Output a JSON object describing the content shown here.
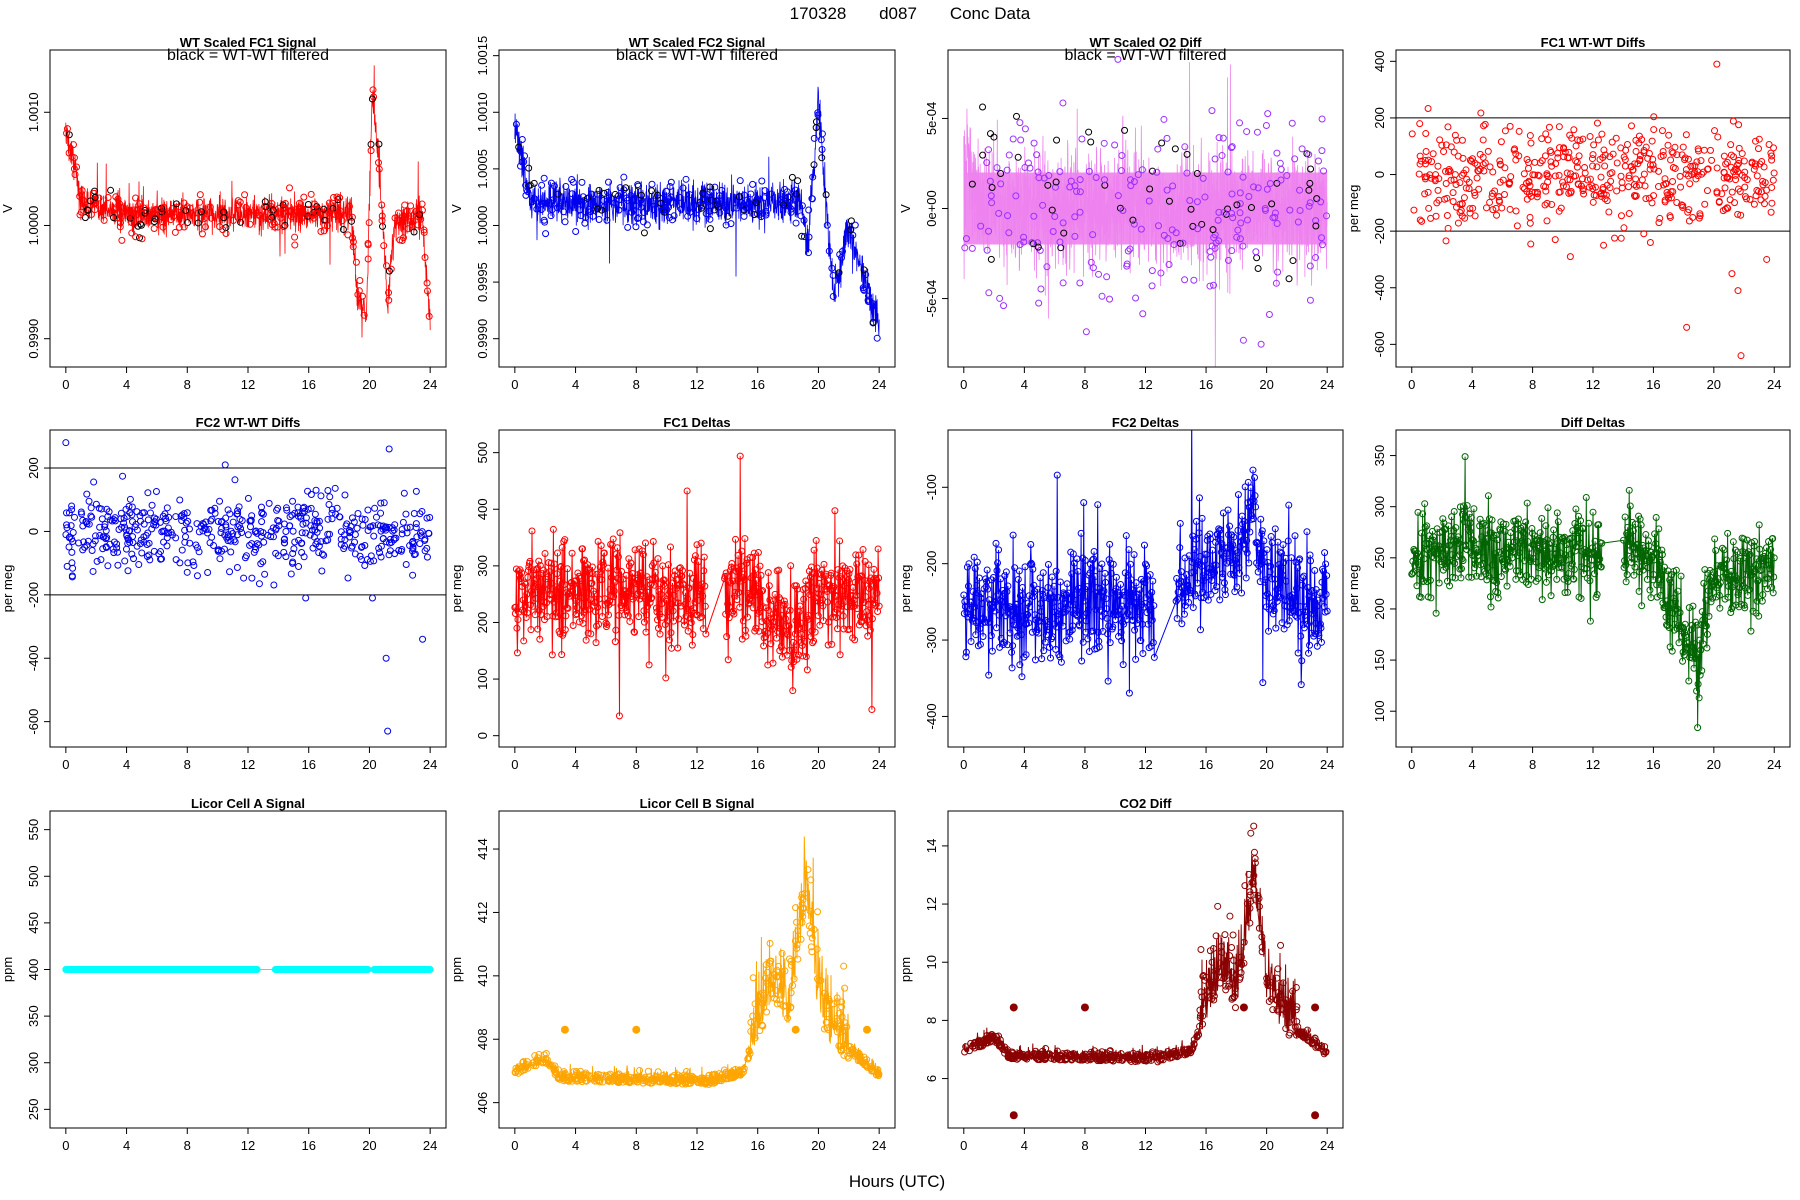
{
  "figure": {
    "title_parts": [
      "170328",
      "d087",
      "Conc Data"
    ],
    "xlabel": "Hours (UTC)",
    "x_ticks": [
      "0",
      "4",
      "8",
      "12",
      "16",
      "20",
      "24"
    ],
    "filter_note": "black = WT-WT filtered"
  },
  "chart_data": [
    {
      "id": "fc1_signal",
      "type": "line",
      "title": "WT Scaled FC1 Signal",
      "ylabel": "V",
      "color": "#ff0000",
      "style": "dense-line",
      "note": true,
      "xlim": [
        0,
        24
      ],
      "ylim": [
        0.99875,
        1.00155
      ],
      "ytick_labels": [
        "0.9990",
        "1.0000",
        "1.0010"
      ],
      "yticks": [
        0.999,
        1.0,
        1.001
      ],
      "xticks": [
        0,
        4,
        8,
        12,
        16,
        20,
        24
      ],
      "profile": [
        [
          0,
          1.0008
        ],
        [
          0.5,
          1.0006
        ],
        [
          1,
          1.0002
        ],
        [
          4,
          1.0001
        ],
        [
          8,
          1.0001
        ],
        [
          12,
          1.0001
        ],
        [
          16,
          1.0001
        ],
        [
          18.8,
          1.0001
        ],
        [
          19.2,
          0.9994
        ],
        [
          19.8,
          0.9992
        ],
        [
          20.2,
          1.0012
        ],
        [
          20.6,
          1.0006
        ],
        [
          21.2,
          0.9993
        ],
        [
          21.6,
          1.0
        ],
        [
          23.5,
          1.0001
        ],
        [
          24,
          0.9991
        ]
      ],
      "noise": 0.00022
    },
    {
      "id": "fc2_signal",
      "type": "line",
      "title": "WT Scaled FC2 Signal",
      "ylabel": "V",
      "color": "#0000ee",
      "style": "dense-line",
      "note": true,
      "xlim": [
        0,
        24
      ],
      "ylim": [
        0.99875,
        1.00155
      ],
      "ytick_labels": [
        "0.9990",
        "0.9995",
        "1.0000",
        "1.0005",
        "1.0010",
        "1.0015"
      ],
      "yticks": [
        0.999,
        0.9995,
        1.0,
        1.0005,
        1.001,
        1.0015
      ],
      "xticks": [
        0,
        4,
        8,
        12,
        16,
        20,
        24
      ],
      "profile": [
        [
          0,
          1.0009
        ],
        [
          1,
          1.0002
        ],
        [
          4,
          1.0002
        ],
        [
          8,
          1.0002
        ],
        [
          12,
          1.0002
        ],
        [
          16,
          1.0002
        ],
        [
          18.8,
          1.0002
        ],
        [
          19.3,
          0.9998
        ],
        [
          20,
          1.0011
        ],
        [
          20.5,
          1.0002
        ],
        [
          21,
          0.9994
        ],
        [
          22,
          1.0
        ],
        [
          24,
          0.9991
        ]
      ],
      "noise": 0.00025
    },
    {
      "id": "o2_diff",
      "type": "line",
      "title": "WT Scaled O2 Diff",
      "ylabel": "V",
      "color": "#ee82ee",
      "style": "band",
      "note": true,
      "xlim": [
        0,
        24
      ],
      "ylim": [
        -0.00088,
        0.00088
      ],
      "ytick_labels": [
        "-5e-04",
        "0e+00",
        "5e-04"
      ],
      "yticks": [
        -0.0005,
        0,
        0.0005
      ],
      "xticks": [
        0,
        4,
        8,
        12,
        16,
        20,
        24
      ],
      "profile": [
        [
          0,
          0.0003
        ],
        [
          1,
          0
        ],
        [
          24,
          0
        ]
      ],
      "noise": 0.00045
    },
    {
      "id": "fc1_wtwt",
      "type": "scatter",
      "title": "FC1 WT-WT Diffs",
      "ylabel": "per meg",
      "color": "#ff0000",
      "hlines": [
        200,
        -200
      ],
      "xlim": [
        0,
        24
      ],
      "ylim": [
        -680,
        440
      ],
      "ytick_labels": [
        "-600",
        "-400",
        "-200",
        "0",
        "200",
        "400"
      ],
      "yticks": [
        -600,
        -400,
        -200,
        0,
        200,
        400
      ],
      "xticks": [
        0,
        4,
        8,
        12,
        16,
        20,
        24
      ],
      "n": 520,
      "center": 0,
      "spread": 90,
      "outliers": [
        [
          9.5,
          -230
        ],
        [
          10.5,
          -290
        ],
        [
          12.7,
          -250
        ],
        [
          15.8,
          -240
        ],
        [
          18.2,
          -540
        ],
        [
          20.2,
          390
        ],
        [
          21.2,
          -350
        ],
        [
          21.6,
          -410
        ],
        [
          21.8,
          -640
        ],
        [
          23.5,
          -300
        ]
      ]
    },
    {
      "id": "fc2_wtwt",
      "type": "scatter",
      "title": "FC2 WT-WT Diffs",
      "ylabel": "per meg",
      "color": "#0000ee",
      "hlines": [
        200,
        -200
      ],
      "xlim": [
        0,
        24
      ],
      "ylim": [
        -680,
        320
      ],
      "ytick_labels": [
        "-600",
        "-400",
        "-200",
        "0",
        "200"
      ],
      "yticks": [
        -600,
        -400,
        -200,
        0,
        200
      ],
      "xticks": [
        0,
        4,
        8,
        12,
        16,
        20,
        24
      ],
      "n": 520,
      "center": 0,
      "spread": 60,
      "outliers": [
        [
          0,
          280
        ],
        [
          10.5,
          210
        ],
        [
          15.8,
          -210
        ],
        [
          20.2,
          -210
        ],
        [
          21.1,
          -400
        ],
        [
          21.2,
          -630
        ],
        [
          21.3,
          260
        ],
        [
          23.5,
          -340
        ]
      ]
    },
    {
      "id": "fc1_deltas",
      "type": "line",
      "title": "FC1 Deltas",
      "ylabel": "per meg",
      "color": "#ff0000",
      "style": "marked-line",
      "xlim": [
        0,
        24
      ],
      "ylim": [
        -20,
        540
      ],
      "ytick_labels": [
        "0",
        "100",
        "200",
        "300",
        "400",
        "500"
      ],
      "yticks": [
        0,
        100,
        200,
        300,
        400,
        500
      ],
      "xticks": [
        0,
        4,
        8,
        12,
        16,
        20,
        24
      ],
      "gaps": [
        [
          12.6,
          13.8
        ]
      ],
      "profile": [
        [
          0,
          250
        ],
        [
          4,
          255
        ],
        [
          8,
          250
        ],
        [
          12.5,
          250
        ],
        [
          14,
          260
        ],
        [
          16,
          255
        ],
        [
          17,
          210
        ],
        [
          19,
          190
        ],
        [
          20,
          240
        ],
        [
          24,
          250
        ]
      ],
      "noise": 45
    },
    {
      "id": "fc2_deltas",
      "type": "line",
      "title": "FC2 Deltas",
      "ylabel": "per meg",
      "color": "#0000ee",
      "style": "marked-line",
      "xlim": [
        0,
        24
      ],
      "ylim": [
        -440,
        -25
      ],
      "ytick_labels": [
        "-400",
        "-300",
        "-200",
        "-100"
      ],
      "yticks": [
        -400,
        -300,
        -200,
        -100
      ],
      "xticks": [
        0,
        4,
        8,
        12,
        16,
        20,
        24
      ],
      "gaps": [
        [
          12.6,
          14
        ]
      ],
      "profile": [
        [
          0,
          -255
        ],
        [
          4,
          -255
        ],
        [
          8,
          -255
        ],
        [
          12.5,
          -260
        ],
        [
          14,
          -240
        ],
        [
          16,
          -200
        ],
        [
          18.5,
          -170
        ],
        [
          19.3,
          -120
        ],
        [
          20,
          -230
        ],
        [
          24,
          -260
        ]
      ],
      "noise": 35
    },
    {
      "id": "diff_deltas",
      "type": "line",
      "title": "Diff Deltas",
      "ylabel": "per meg",
      "color": "#006400",
      "style": "marked-line",
      "xlim": [
        0,
        24
      ],
      "ylim": [
        65,
        375
      ],
      "ytick_labels": [
        "100",
        "150",
        "200",
        "250",
        "300",
        "350"
      ],
      "yticks": [
        100,
        150,
        200,
        250,
        300,
        350
      ],
      "xticks": [
        0,
        4,
        8,
        12,
        16,
        20,
        24
      ],
      "gaps": [
        [
          12.6,
          14
        ]
      ],
      "profile": [
        [
          0,
          245
        ],
        [
          3,
          265
        ],
        [
          4,
          260
        ],
        [
          8,
          255
        ],
        [
          12.5,
          255
        ],
        [
          14,
          255
        ],
        [
          16,
          250
        ],
        [
          17,
          215
        ],
        [
          19,
          150
        ],
        [
          20,
          230
        ],
        [
          24,
          245
        ]
      ],
      "noise": 22
    },
    {
      "id": "licor_a",
      "type": "line",
      "title": "Licor Cell A Signal",
      "ylabel": "ppm",
      "color": "#00ffff",
      "style": "flat",
      "xlim": [
        0,
        24
      ],
      "ylim": [
        230,
        570
      ],
      "ytick_labels": [
        "250",
        "300",
        "350",
        "400",
        "450",
        "500",
        "550"
      ],
      "yticks": [
        250,
        300,
        350,
        400,
        450,
        500,
        550
      ],
      "xticks": [
        0,
        4,
        8,
        12,
        16,
        20,
        24
      ],
      "value": 400,
      "gaps": [
        [
          12.6,
          13.8
        ],
        [
          19.9,
          20.3
        ]
      ]
    },
    {
      "id": "licor_b",
      "type": "line",
      "title": "Licor Cell B Signal",
      "ylabel": "ppm",
      "color": "#ffa500",
      "style": "co2",
      "xlim": [
        0,
        24
      ],
      "ylim": [
        405.2,
        415.2
      ],
      "ytick_labels": [
        "406",
        "408",
        "410",
        "412",
        "414"
      ],
      "yticks": [
        406,
        408,
        410,
        412,
        414
      ],
      "xticks": [
        0,
        4,
        8,
        12,
        16,
        20,
        24
      ],
      "base": 406.7,
      "profile": [
        [
          0,
          406.9
        ],
        [
          2,
          407.3
        ],
        [
          3,
          406.7
        ],
        [
          12.8,
          406.6
        ],
        [
          15,
          406.9
        ],
        [
          16,
          408.2
        ],
        [
          17,
          409.5
        ],
        [
          18,
          408.5
        ],
        [
          19.2,
          412.5
        ],
        [
          20,
          409
        ],
        [
          21,
          407.8
        ],
        [
          22,
          407.6
        ],
        [
          24,
          406.8
        ]
      ],
      "noise": 0.5
    },
    {
      "id": "co2_diff",
      "type": "line",
      "title": "CO2 Diff",
      "ylabel": "ppm",
      "color": "#8b0000",
      "style": "co2",
      "xlim": [
        0,
        24
      ],
      "ylim": [
        4.3,
        15.2
      ],
      "ytick_labels": [
        "6",
        "8",
        "10",
        "12",
        "14"
      ],
      "yticks": [
        6,
        8,
        10,
        12,
        14
      ],
      "xticks": [
        0,
        4,
        8,
        12,
        16,
        20,
        24
      ],
      "base": 6.7,
      "profile": [
        [
          0,
          6.9
        ],
        [
          2,
          7.3
        ],
        [
          3,
          6.7
        ],
        [
          12.8,
          6.6
        ],
        [
          15,
          6.9
        ],
        [
          16,
          8.2
        ],
        [
          17,
          9.5
        ],
        [
          18,
          8.5
        ],
        [
          19.2,
          12.5
        ],
        [
          20,
          9
        ],
        [
          21,
          7.8
        ],
        [
          22,
          7.6
        ],
        [
          24,
          6.8
        ]
      ],
      "noise": 0.5
    }
  ]
}
